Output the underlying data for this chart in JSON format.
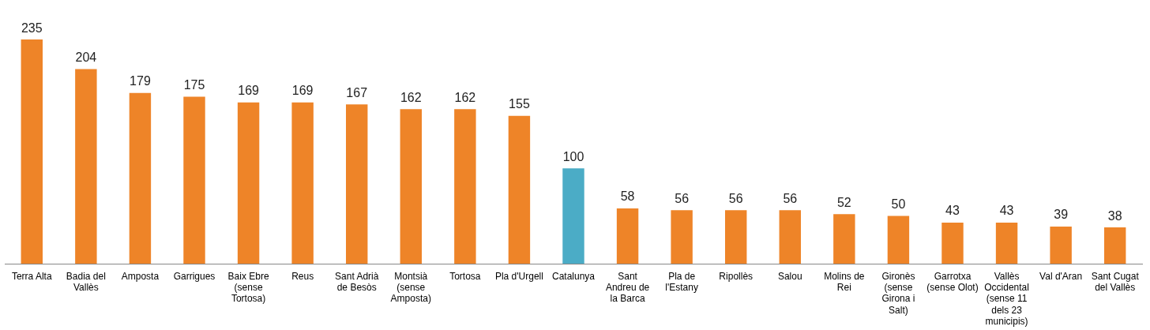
{
  "chart_data": {
    "type": "bar",
    "categories": [
      "Terra Alta",
      "Badia del Vallès",
      "Amposta",
      "Garrigues",
      "Baix Ebre (sense Tortosa)",
      "Reus",
      "Sant Adrià de Besòs",
      "Montsià (sense Amposta)",
      "Tortosa",
      "Pla d'Urgell",
      "Catalunya",
      "Sant Andreu de la Barca",
      "Pla de l'Estany",
      "Ripollès",
      "Salou",
      "Molins de Rei",
      "Gironès (sense Girona i Salt)",
      "Garrotxa (sense Olot)",
      "Vallès Occidental (sense 11 dels 23 municipis)",
      "Val d'Aran",
      "Sant Cugat del Vallès"
    ],
    "values": [
      235,
      204,
      179,
      175,
      169,
      169,
      167,
      162,
      162,
      155,
      100,
      58,
      56,
      56,
      56,
      52,
      50,
      43,
      43,
      39,
      38
    ],
    "colors": [
      "#ee8428",
      "#ee8428",
      "#ee8428",
      "#ee8428",
      "#ee8428",
      "#ee8428",
      "#ee8428",
      "#ee8428",
      "#ee8428",
      "#ee8428",
      "#4bacc6",
      "#ee8428",
      "#ee8428",
      "#ee8428",
      "#ee8428",
      "#ee8428",
      "#ee8428",
      "#ee8428",
      "#ee8428",
      "#ee8428",
      "#ee8428"
    ],
    "data_labels": true,
    "grid": false,
    "legend": false
  }
}
